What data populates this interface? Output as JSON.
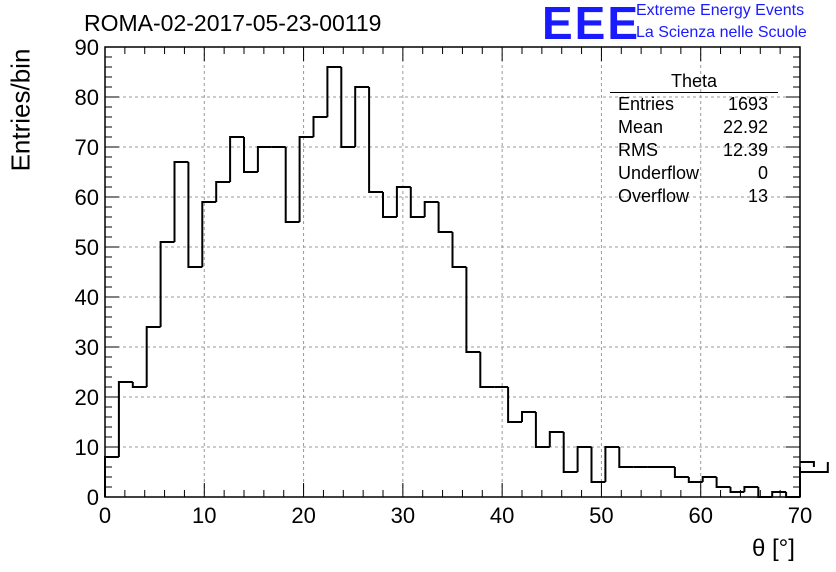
{
  "title": "ROMA-02-2017-05-23-00119",
  "logo": {
    "mark": "EEE",
    "line1": "Extreme Energy Events",
    "line2": "La Scienza nelle Scuole",
    "color": "#1a1aff"
  },
  "stats": {
    "title": "Theta",
    "rows": [
      {
        "label": "Entries",
        "value": "1693"
      },
      {
        "label": "Mean",
        "value": "22.92"
      },
      {
        "label": "RMS",
        "value": "12.39"
      },
      {
        "label": "Underflow",
        "value": "0"
      },
      {
        "label": "Overflow",
        "value": "13"
      }
    ]
  },
  "chart_data": {
    "type": "bar",
    "histogram": true,
    "xlabel": "θ [°]",
    "ylabel": "Entries/bin",
    "xlim": [
      0,
      70
    ],
    "ylim": [
      0,
      90
    ],
    "grid": true,
    "bin_width": 1.4,
    "x_ticks": [
      0,
      10,
      20,
      30,
      40,
      50,
      60,
      70
    ],
    "y_ticks": [
      0,
      10,
      20,
      30,
      40,
      50,
      60,
      70,
      80,
      90
    ],
    "values": [
      8,
      23,
      22,
      34,
      51,
      67,
      46,
      59,
      63,
      72,
      65,
      70,
      70,
      55,
      72,
      76,
      86,
      70,
      82,
      61,
      56,
      62,
      56,
      59,
      53,
      46,
      29,
      22,
      22,
      15,
      17,
      10,
      13,
      5,
      10,
      3,
      10,
      6,
      6,
      6,
      6,
      4,
      3,
      4,
      2,
      1,
      2,
      0,
      1,
      0,
      6,
      7,
      5
    ],
    "line_color": "#000000"
  }
}
